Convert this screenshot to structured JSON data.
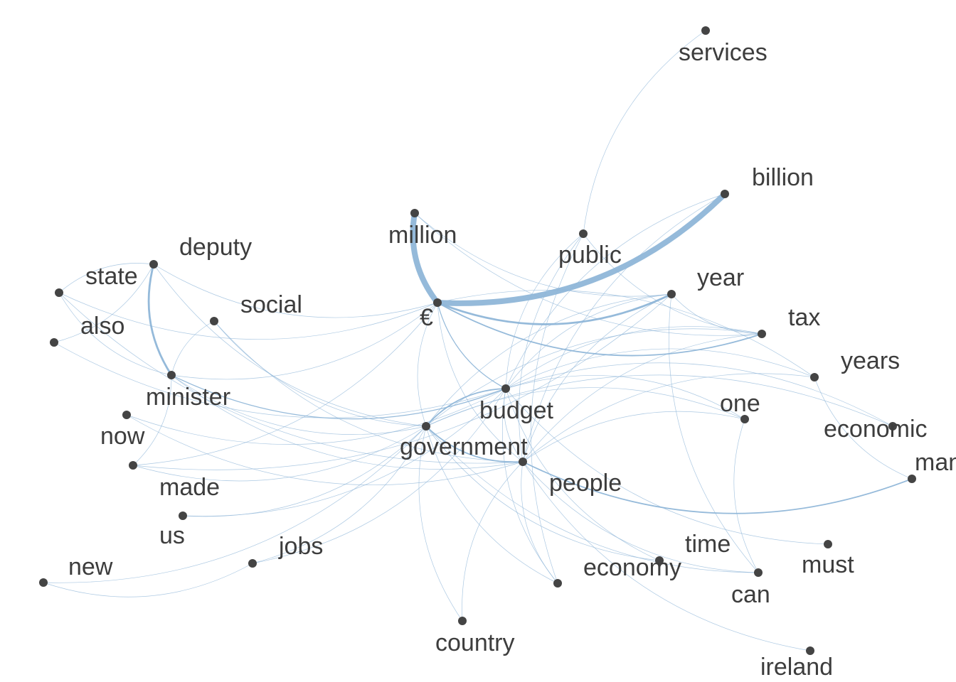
{
  "graph": {
    "nodes": [
      {
        "id": "services",
        "label": "services"
      },
      {
        "id": "billion",
        "label": "billion"
      },
      {
        "id": "million",
        "label": "million"
      },
      {
        "id": "public",
        "label": "public"
      },
      {
        "id": "deputy",
        "label": "deputy"
      },
      {
        "id": "state",
        "label": "state"
      },
      {
        "id": "year",
        "label": "year"
      },
      {
        "id": "social",
        "label": "social"
      },
      {
        "id": "euro",
        "label": "€"
      },
      {
        "id": "also",
        "label": "also"
      },
      {
        "id": "tax",
        "label": "tax"
      },
      {
        "id": "years",
        "label": "years"
      },
      {
        "id": "minister",
        "label": "minister"
      },
      {
        "id": "budget",
        "label": "budget"
      },
      {
        "id": "one",
        "label": "one"
      },
      {
        "id": "now",
        "label": "now"
      },
      {
        "id": "economic",
        "label": "economic"
      },
      {
        "id": "government",
        "label": "government"
      },
      {
        "id": "made",
        "label": "made"
      },
      {
        "id": "people",
        "label": "people"
      },
      {
        "id": "many",
        "label": "many"
      },
      {
        "id": "us",
        "label": "us"
      },
      {
        "id": "jobs",
        "label": "jobs"
      },
      {
        "id": "time",
        "label": "time"
      },
      {
        "id": "must",
        "label": "must"
      },
      {
        "id": "new",
        "label": "new"
      },
      {
        "id": "economy",
        "label": "economy"
      },
      {
        "id": "can",
        "label": "can"
      },
      {
        "id": "country",
        "label": "country"
      },
      {
        "id": "ireland",
        "label": "ireland"
      }
    ],
    "edges": [
      {
        "source": "euro",
        "target": "billion",
        "weight": 8
      },
      {
        "source": "million",
        "target": "euro",
        "weight": 8
      },
      {
        "source": "euro",
        "target": "year",
        "weight": 3
      },
      {
        "source": "deputy",
        "target": "minister",
        "weight": 3
      },
      {
        "source": "euro",
        "target": "tax",
        "weight": 2
      },
      {
        "source": "budget",
        "target": "government",
        "weight": 2
      },
      {
        "source": "government",
        "target": "people",
        "weight": 2
      },
      {
        "source": "people",
        "target": "many",
        "weight": 2
      },
      {
        "source": "minister",
        "target": "budget",
        "weight": 1.5
      },
      {
        "source": "euro",
        "target": "budget",
        "weight": 1.5
      },
      {
        "source": "services",
        "target": "public",
        "weight": 1
      },
      {
        "source": "million",
        "target": "year",
        "weight": 1
      },
      {
        "source": "billion",
        "target": "budget",
        "weight": 1
      },
      {
        "source": "billion",
        "target": "people",
        "weight": 1
      },
      {
        "source": "public",
        "target": "budget",
        "weight": 1
      },
      {
        "source": "public",
        "target": "people",
        "weight": 1
      },
      {
        "source": "public",
        "target": "economy",
        "weight": 1
      },
      {
        "source": "public",
        "target": "tax",
        "weight": 1
      },
      {
        "source": "deputy",
        "target": "state",
        "weight": 1
      },
      {
        "source": "deputy",
        "target": "euro",
        "weight": 1
      },
      {
        "source": "deputy",
        "target": "government",
        "weight": 1
      },
      {
        "source": "state",
        "target": "euro",
        "weight": 1
      },
      {
        "source": "state",
        "target": "minister",
        "weight": 1
      },
      {
        "source": "state",
        "target": "people",
        "weight": 1
      },
      {
        "source": "also",
        "target": "deputy",
        "weight": 1
      },
      {
        "source": "also",
        "target": "budget",
        "weight": 1
      },
      {
        "source": "social",
        "target": "government",
        "weight": 1
      },
      {
        "source": "social",
        "target": "people",
        "weight": 1
      },
      {
        "source": "social",
        "target": "minister",
        "weight": 1
      },
      {
        "source": "minister",
        "target": "government",
        "weight": 1
      },
      {
        "source": "minister",
        "target": "euro",
        "weight": 1
      },
      {
        "source": "minister",
        "target": "people",
        "weight": 1
      },
      {
        "source": "now",
        "target": "budget",
        "weight": 1
      },
      {
        "source": "now",
        "target": "people",
        "weight": 1
      },
      {
        "source": "made",
        "target": "euro",
        "weight": 1
      },
      {
        "source": "made",
        "target": "government",
        "weight": 1
      },
      {
        "source": "made",
        "target": "year",
        "weight": 1
      },
      {
        "source": "made",
        "target": "minister",
        "weight": 1
      },
      {
        "source": "us",
        "target": "government",
        "weight": 1
      },
      {
        "source": "us",
        "target": "budget",
        "weight": 1
      },
      {
        "source": "jobs",
        "target": "government",
        "weight": 1
      },
      {
        "source": "jobs",
        "target": "budget",
        "weight": 1
      },
      {
        "source": "new",
        "target": "jobs",
        "weight": 1
      },
      {
        "source": "new",
        "target": "government",
        "weight": 1
      },
      {
        "source": "year",
        "target": "budget",
        "weight": 1
      },
      {
        "source": "year",
        "target": "people",
        "weight": 1
      },
      {
        "source": "year",
        "target": "government",
        "weight": 1
      },
      {
        "source": "year",
        "target": "tax",
        "weight": 1
      },
      {
        "source": "year",
        "target": "can",
        "weight": 1
      },
      {
        "source": "tax",
        "target": "budget",
        "weight": 1
      },
      {
        "source": "tax",
        "target": "government",
        "weight": 1
      },
      {
        "source": "tax",
        "target": "people",
        "weight": 1
      },
      {
        "source": "years",
        "target": "budget",
        "weight": 1
      },
      {
        "source": "years",
        "target": "people",
        "weight": 1
      },
      {
        "source": "years",
        "target": "euro",
        "weight": 1
      },
      {
        "source": "years",
        "target": "many",
        "weight": 1
      },
      {
        "source": "one",
        "target": "budget",
        "weight": 1
      },
      {
        "source": "one",
        "target": "government",
        "weight": 1
      },
      {
        "source": "one",
        "target": "people",
        "weight": 1
      },
      {
        "source": "one",
        "target": "can",
        "weight": 1
      },
      {
        "source": "economic",
        "target": "budget",
        "weight": 1
      },
      {
        "source": "economic",
        "target": "government",
        "weight": 1
      },
      {
        "source": "budget",
        "target": "people",
        "weight": 1
      },
      {
        "source": "budget",
        "target": "economy",
        "weight": 1
      },
      {
        "source": "budget",
        "target": "time",
        "weight": 1
      },
      {
        "source": "budget",
        "target": "must",
        "weight": 1
      },
      {
        "source": "government",
        "target": "economy",
        "weight": 1
      },
      {
        "source": "government",
        "target": "time",
        "weight": 1
      },
      {
        "source": "government",
        "target": "can",
        "weight": 1
      },
      {
        "source": "government",
        "target": "country",
        "weight": 1
      },
      {
        "source": "people",
        "target": "ireland",
        "weight": 1
      },
      {
        "source": "people",
        "target": "can",
        "weight": 1
      },
      {
        "source": "people",
        "target": "economy",
        "weight": 1
      },
      {
        "source": "people",
        "target": "country",
        "weight": 1
      },
      {
        "source": "euro",
        "target": "government",
        "weight": 1
      },
      {
        "source": "euro",
        "target": "people",
        "weight": 1
      },
      {
        "source": "million",
        "target": "tax",
        "weight": 1
      }
    ]
  }
}
